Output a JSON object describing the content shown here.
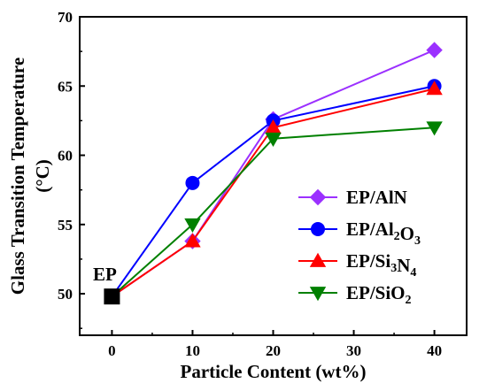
{
  "chart_data": {
    "type": "line",
    "xlabel": "Particle Content (wt%)",
    "ylabel_line1": "Glass Transition Temperature",
    "ylabel_line2": "(°C)",
    "xlim": [
      -4,
      44
    ],
    "ylim": [
      47,
      70
    ],
    "xticks": [
      0,
      10,
      20,
      30,
      40
    ],
    "yticks": [
      50,
      55,
      60,
      65,
      70
    ],
    "grid": false,
    "legend_position": "lower-right",
    "baseline": {
      "label": "EP",
      "x": 0,
      "y": 49.8,
      "color": "#000000"
    },
    "series": [
      {
        "name": "EP/AlN",
        "color": "#9b30ff",
        "marker": "diamond",
        "x": [
          0,
          10,
          20,
          40
        ],
        "y": [
          49.8,
          53.8,
          62.6,
          67.6
        ]
      },
      {
        "name": "EP/Al2O3",
        "color": "#0000ff",
        "marker": "circle",
        "x": [
          0,
          10,
          20,
          40
        ],
        "y": [
          49.8,
          58.0,
          62.5,
          65.0
        ]
      },
      {
        "name": "EP/Si3N4",
        "color": "#ff0000",
        "marker": "triangle-up",
        "x": [
          0,
          10,
          20,
          40
        ],
        "y": [
          49.8,
          53.8,
          62.0,
          64.8
        ]
      },
      {
        "name": "EP/SiO2",
        "color": "#008000",
        "marker": "triangle-down",
        "x": [
          0,
          10,
          20,
          40
        ],
        "y": [
          49.8,
          55.0,
          61.2,
          62.0
        ]
      }
    ]
  }
}
